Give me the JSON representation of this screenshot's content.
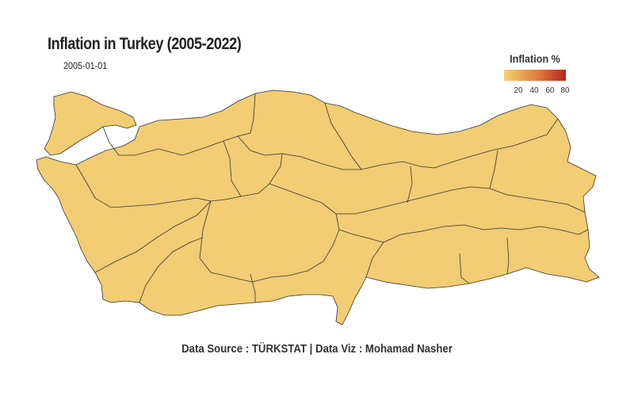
{
  "title": "Inflation in Turkey (2005-2022)",
  "subtitle": "2005-01-01",
  "legend": {
    "title": "Inflation %",
    "ticks": [
      "20",
      "40",
      "60",
      "80"
    ],
    "color_low": "#f5d36e",
    "color_mid": "#e07b3c",
    "color_high": "#b8231f"
  },
  "map": {
    "fill_color": "#f3cd73",
    "border_color": "#333333"
  },
  "caption": "Data Source : TÜRKSTAT | Data Viz : Mohamad Nasher"
}
